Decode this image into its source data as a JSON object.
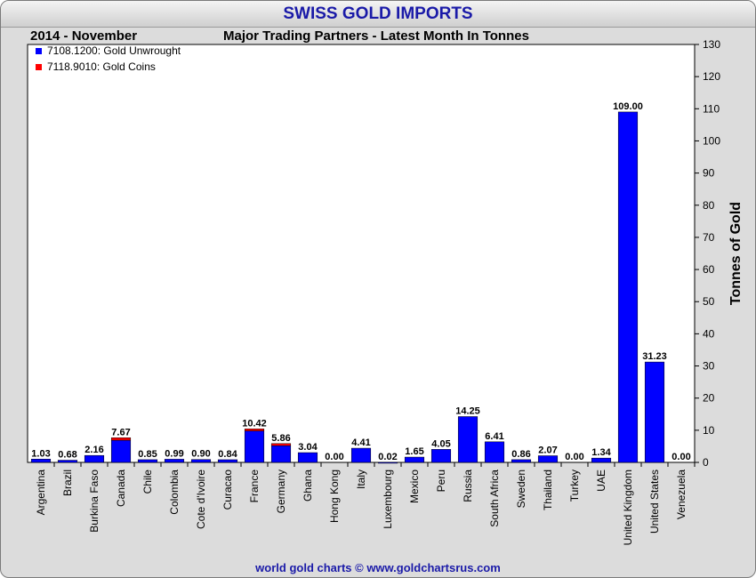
{
  "header": {
    "title": "SWISS GOLD IMPORTS",
    "period": "2014 - November",
    "subtitle": "Major Trading Partners - Latest Month In Tonnes"
  },
  "footer": {
    "text": "world gold charts © www.goldchartsrus.com"
  },
  "chart_data": {
    "type": "bar",
    "stacked": true,
    "title": "SWISS GOLD IMPORTS",
    "subtitle": "Major Trading Partners - Latest Month In Tonnes",
    "ylabel": "Tonnes of Gold",
    "xlabel": "",
    "ylim": [
      0,
      130
    ],
    "yticks": [
      0,
      10,
      20,
      30,
      40,
      50,
      60,
      70,
      80,
      90,
      100,
      110,
      120,
      130
    ],
    "y_axis_side": "right",
    "grid": false,
    "legend_position": "top-left",
    "categories": [
      "Argentina",
      "Brazil",
      "Burkina Faso",
      "Canada",
      "Chile",
      "Colombia",
      "Cote d'Ivoire",
      "Curacao",
      "France",
      "Germany",
      "Ghana",
      "Hong Kong",
      "Italy",
      "Luxembourg",
      "Mexico",
      "Peru",
      "Russia",
      "South Africa",
      "Sweden",
      "Thailand",
      "Turkey",
      "UAE",
      "United Kingdom",
      "United States",
      "Venezuela"
    ],
    "series": [
      {
        "name": "7108.1200: Gold Unwrought",
        "color": "#0000ff",
        "values": [
          1.03,
          0.68,
          2.16,
          6.9,
          0.85,
          0.99,
          0.9,
          0.84,
          9.8,
          5.2,
          3.04,
          0.0,
          4.41,
          0.02,
          1.65,
          4.05,
          14.25,
          6.41,
          0.86,
          2.07,
          0.0,
          1.34,
          109.0,
          31.23,
          0.0
        ]
      },
      {
        "name": "7118.9010: Gold Coins",
        "color": "#ff0000",
        "values": [
          0,
          0,
          0,
          0.77,
          0,
          0,
          0,
          0,
          0.62,
          0.66,
          0,
          0,
          0,
          0,
          0,
          0,
          0,
          0,
          0,
          0,
          0,
          0,
          0,
          0,
          0
        ]
      }
    ],
    "totals": [
      "1.03",
      "0.68",
      "2.16",
      "7.67",
      "0.85",
      "0.99",
      "0.90",
      "0.84",
      "10.42",
      "5.86",
      "3.04",
      "0.00",
      "4.41",
      "0.02",
      "1.65",
      "4.05",
      "14.25",
      "6.41",
      "0.86",
      "2.07",
      "0.00",
      "1.34",
      "109.00",
      "31.23",
      "0.00"
    ]
  }
}
